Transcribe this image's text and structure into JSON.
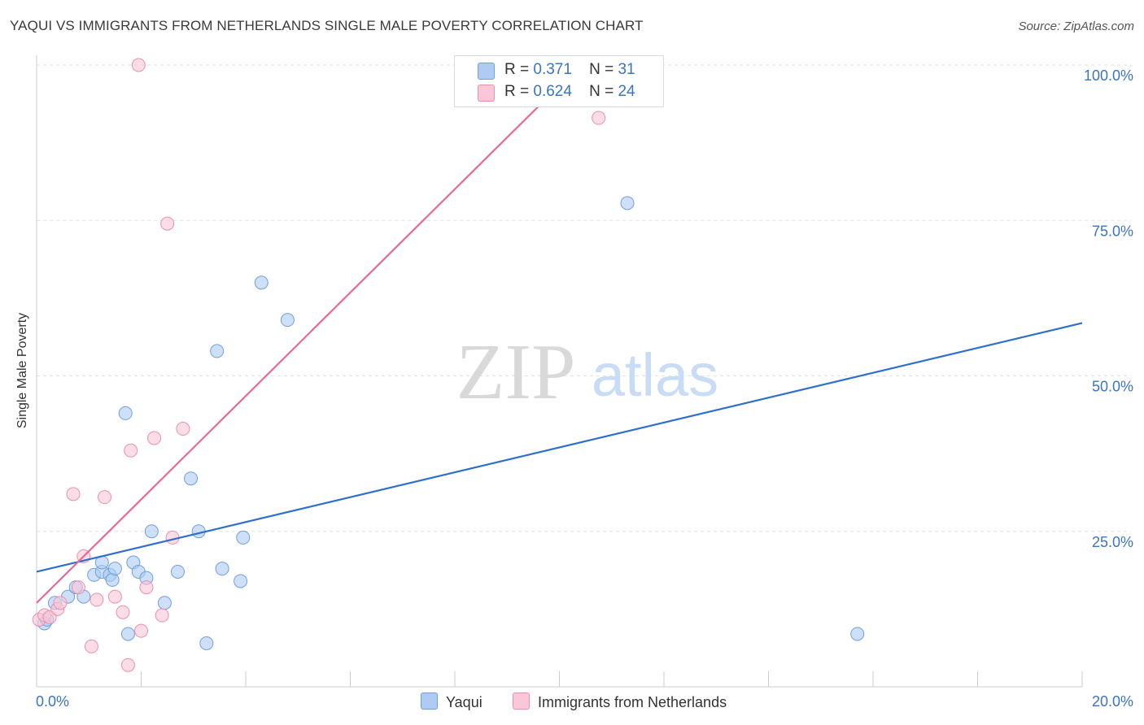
{
  "header": {
    "title": "YAQUI VS IMMIGRANTS FROM NETHERLANDS SINGLE MALE POVERTY CORRELATION CHART",
    "source": "Source: ZipAtlas.com"
  },
  "watermark": {
    "zip": "ZIP",
    "atlas": "atlas"
  },
  "legend": {
    "rows": [
      {
        "r_label": "R =",
        "r_value": "0.371",
        "n_label": "N =",
        "n_value": "31",
        "color": "#aecbf4",
        "border": "#6f9fe0"
      },
      {
        "r_label": "R =",
        "r_value": "0.624",
        "n_label": "N =",
        "n_value": "24",
        "color": "#f9c7d7",
        "border": "#ec8fad"
      }
    ],
    "bottom": [
      "Yaqui",
      "Immigrants from Netherlands"
    ]
  },
  "chart_data": {
    "type": "scatter",
    "title": "YAQUI VS IMMIGRANTS FROM NETHERLANDS SINGLE MALE POVERTY CORRELATION CHART",
    "xlabel": "",
    "ylabel": "Single Male Poverty",
    "xlim": [
      0,
      20
    ],
    "ylim": [
      0,
      100
    ],
    "x_tick_labels": [
      "0.0%",
      "20.0%"
    ],
    "y_tick_labels": [
      "25.0%",
      "50.0%",
      "75.0%",
      "100.0%"
    ],
    "y_ticks": [
      25,
      50,
      75,
      100
    ],
    "grid": true,
    "legend_position": "top-center",
    "series": [
      {
        "name": "Yaqui",
        "color": "#aecbf4",
        "stroke": "#6f9fe0",
        "line_color": "#2e6fcc",
        "trend": [
          [
            0,
            18.5
          ],
          [
            20,
            58.5
          ]
        ],
        "points": [
          [
            0.15,
            10.2
          ],
          [
            0.2,
            10.8
          ],
          [
            0.35,
            13.5
          ],
          [
            0.6,
            14.5
          ],
          [
            0.75,
            16.0
          ],
          [
            0.9,
            14.5
          ],
          [
            1.1,
            18.0
          ],
          [
            1.25,
            18.5
          ],
          [
            1.4,
            18.0
          ],
          [
            1.25,
            20.0
          ],
          [
            1.45,
            17.2
          ],
          [
            1.5,
            19.0
          ],
          [
            1.7,
            44.0
          ],
          [
            1.75,
            8.5
          ],
          [
            1.85,
            20.0
          ],
          [
            1.95,
            18.5
          ],
          [
            2.1,
            17.5
          ],
          [
            2.2,
            25.0
          ],
          [
            2.45,
            13.5
          ],
          [
            2.7,
            18.5
          ],
          [
            2.95,
            33.5
          ],
          [
            3.1,
            25.0
          ],
          [
            3.25,
            7.0
          ],
          [
            3.45,
            54.0
          ],
          [
            3.55,
            19.0
          ],
          [
            3.9,
            17.0
          ],
          [
            3.95,
            24.0
          ],
          [
            4.3,
            65.0
          ],
          [
            4.8,
            59.0
          ],
          [
            11.3,
            77.8
          ],
          [
            15.7,
            8.5
          ]
        ]
      },
      {
        "name": "Immigrants from Netherlands",
        "color": "#f9c7d7",
        "stroke": "#ec8fad",
        "line_color": "#e56b91",
        "trend": [
          [
            0,
            13.5
          ],
          [
            10.4,
            100
          ]
        ],
        "points": [
          [
            0.05,
            10.8
          ],
          [
            0.15,
            11.5
          ],
          [
            0.25,
            11.2
          ],
          [
            0.4,
            12.5
          ],
          [
            0.45,
            13.5
          ],
          [
            0.7,
            31.0
          ],
          [
            0.8,
            16.0
          ],
          [
            0.9,
            21.0
          ],
          [
            1.05,
            6.5
          ],
          [
            1.15,
            14.0
          ],
          [
            1.3,
            30.5
          ],
          [
            1.5,
            14.5
          ],
          [
            1.65,
            12.0
          ],
          [
            1.75,
            3.5
          ],
          [
            1.8,
            38.0
          ],
          [
            1.95,
            100.0
          ],
          [
            2.0,
            9.0
          ],
          [
            2.1,
            16.0
          ],
          [
            2.25,
            40.0
          ],
          [
            2.4,
            11.5
          ],
          [
            2.5,
            74.5
          ],
          [
            2.6,
            24.0
          ],
          [
            2.8,
            41.5
          ],
          [
            10.75,
            91.5
          ]
        ]
      }
    ]
  }
}
